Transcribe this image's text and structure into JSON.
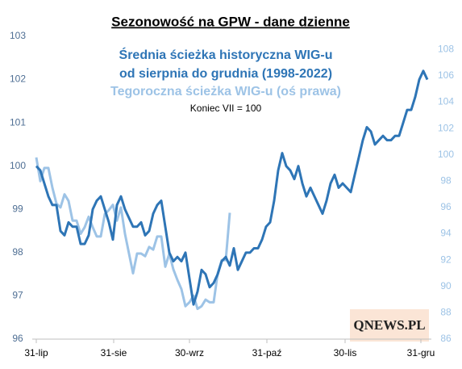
{
  "chart_data": {
    "type": "line",
    "title": "Sezonowość na GPW - dane dzienne",
    "annotations": [
      "Średnia ścieżka historyczna WIG-u",
      "od sierpnia do grudnia (1998-2022)",
      "Tegoroczna ścieżka WIG-u (oś prawa)",
      "Koniec VII = 100"
    ],
    "logo": "QNEWS.PL",
    "x": [
      0,
      1,
      2,
      3,
      4,
      5,
      6,
      7,
      8,
      9,
      10,
      11,
      12,
      13,
      14,
      15,
      16,
      17,
      18,
      19,
      20,
      21,
      22,
      23,
      24,
      25,
      26,
      27,
      28,
      29,
      30,
      31,
      32,
      33,
      34,
      35,
      36,
      37,
      38,
      39,
      40,
      41,
      42,
      43,
      44,
      45,
      46,
      47,
      48,
      49,
      50,
      51,
      52,
      53,
      54,
      55,
      56,
      57,
      58,
      59,
      60,
      61,
      62,
      63,
      64,
      65,
      66,
      67,
      68,
      69,
      70,
      71,
      72,
      73,
      74,
      75,
      76,
      77,
      78,
      79,
      80,
      81,
      82,
      83,
      84,
      85,
      86,
      87,
      88,
      89,
      90,
      91,
      92,
      93,
      94,
      95,
      96,
      97
    ],
    "xlim": [
      0,
      97
    ],
    "xticks": [
      {
        "value": 0,
        "label": "31-lip"
      },
      {
        "value": 19.2,
        "label": "31-sie"
      },
      {
        "value": 38,
        "label": "30-wrz"
      },
      {
        "value": 57.2,
        "label": "31-paź"
      },
      {
        "value": 76.6,
        "label": "30-lis"
      },
      {
        "value": 95.4,
        "label": "31-gru"
      }
    ],
    "ylim": [
      96,
      103
    ],
    "yticks": [
      96,
      97,
      98,
      99,
      100,
      101,
      102,
      103
    ],
    "y2lim": [
      86,
      109
    ],
    "y2ticks": [
      86,
      88,
      90,
      92,
      94,
      96,
      98,
      100,
      102,
      104,
      106,
      108
    ],
    "series": [
      {
        "name": "Średnia ścieżka historyczna",
        "color": "#2e75b6",
        "values": [
          100.0,
          99.9,
          99.6,
          99.3,
          99.1,
          99.1,
          98.5,
          98.4,
          98.7,
          98.6,
          98.6,
          98.2,
          98.2,
          98.4,
          99.0,
          99.2,
          99.3,
          99.0,
          98.7,
          98.3,
          99.1,
          99.3,
          99.0,
          98.8,
          98.6,
          98.6,
          98.7,
          98.4,
          98.5,
          98.9,
          99.1,
          99.2,
          98.6,
          98.0,
          97.8,
          97.9,
          97.8,
          98.0,
          97.4,
          96.8,
          97.1,
          97.6,
          97.5,
          97.2,
          97.3,
          97.5,
          97.8,
          97.9,
          97.7,
          98.1,
          97.6,
          97.8,
          98.0,
          98.0,
          98.1,
          98.1,
          98.3,
          98.6,
          98.7,
          99.2,
          99.9,
          100.3,
          100.0,
          99.9,
          99.7,
          100.0,
          99.6,
          99.3,
          99.5,
          99.3,
          99.1,
          98.9,
          99.2,
          99.6,
          99.8,
          99.5,
          99.6,
          99.5,
          99.4,
          99.8,
          100.2,
          100.6,
          100.9,
          100.8,
          100.5,
          100.6,
          100.7,
          100.6,
          100.6,
          100.7,
          100.7,
          101.0,
          101.3,
          101.3,
          101.6,
          102.0,
          102.2,
          102.0
        ]
      },
      {
        "name": "Tegoroczna ścieżka",
        "color": "#9dc3e6",
        "axis": "y2",
        "values": [
          99.8,
          98.0,
          99.0,
          99.0,
          97.5,
          96.3,
          96.0,
          97.0,
          96.5,
          95.0,
          95.0,
          94.0,
          94.5,
          95.3,
          94.5,
          93.8,
          93.8,
          95.5,
          95.8,
          96.2,
          95.0,
          96.0,
          94.0,
          92.5,
          91.0,
          92.5,
          92.5,
          92.3,
          93.0,
          92.8,
          93.8,
          93.8,
          91.5,
          92.5,
          91.3,
          90.5,
          89.8,
          88.5,
          88.8,
          89.3,
          88.3,
          88.5,
          89.0,
          88.8,
          88.8,
          91.0,
          92.0,
          92.0,
          95.6,
          null,
          null,
          null,
          null,
          null,
          null,
          null,
          null,
          null,
          null,
          null,
          null,
          null,
          null,
          null,
          null,
          null,
          null,
          null,
          null,
          null,
          null,
          null,
          null,
          null,
          null,
          null,
          null,
          null,
          null,
          null,
          null,
          null,
          null,
          null,
          null,
          null,
          null,
          null,
          null,
          null,
          null,
          null,
          null,
          null,
          null,
          null,
          null,
          null
        ]
      }
    ]
  }
}
